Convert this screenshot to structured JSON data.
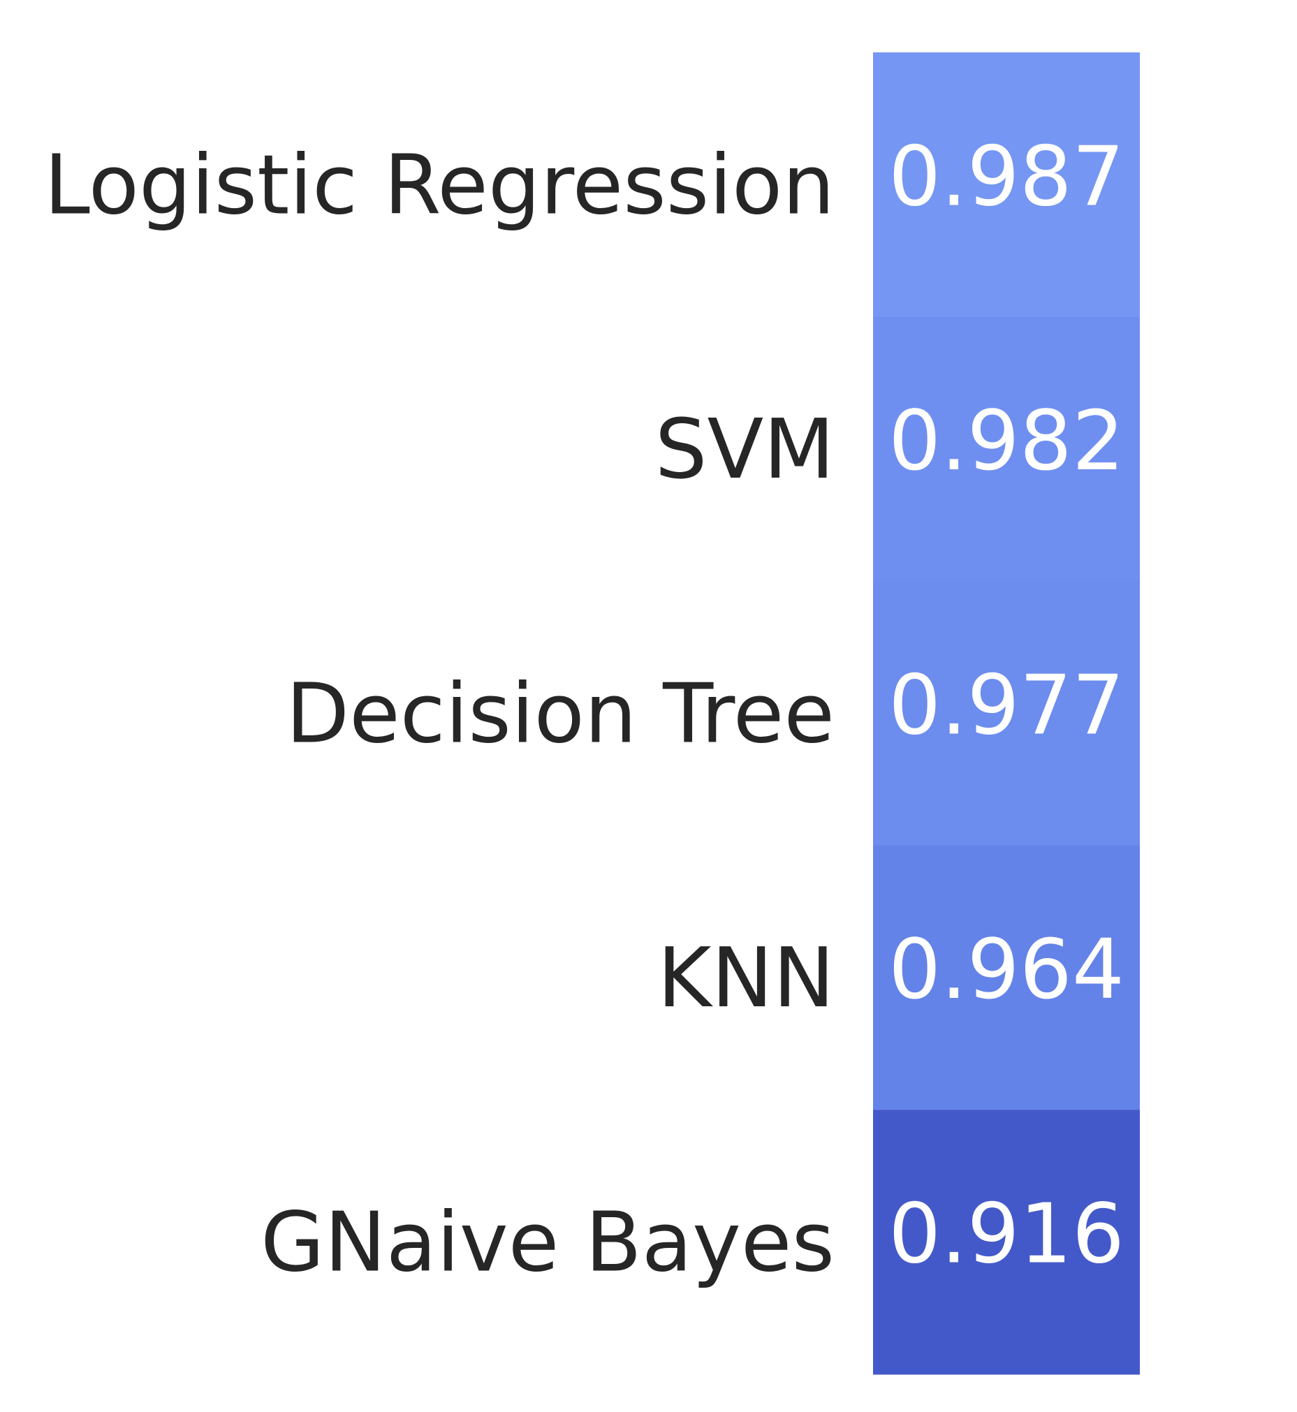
{
  "chart_data": {
    "type": "heatmap",
    "rows": [
      "Logistic Regression",
      "SVM",
      "Decision Tree",
      "KNN",
      "GNaive Bayes"
    ],
    "columns": [
      ""
    ],
    "values": [
      [
        0.987
      ],
      [
        0.982
      ],
      [
        0.977
      ],
      [
        0.964
      ],
      [
        0.916
      ]
    ],
    "value_labels": [
      "0.987",
      "0.982",
      "0.977",
      "0.964",
      "0.916"
    ],
    "cell_colors": [
      "#7596f2",
      "#6f8ff0",
      "#6c8cee",
      "#6483e8",
      "#4459c9"
    ],
    "text_color": "#ffffff",
    "label_color": "#262626",
    "grid": false,
    "legend": "none"
  }
}
